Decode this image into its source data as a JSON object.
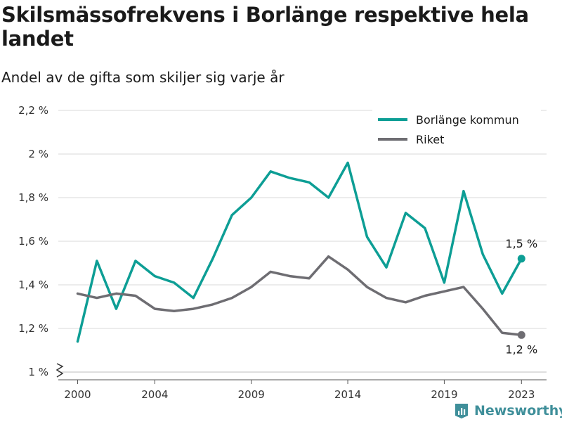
{
  "title": "Skilsmässofrekvens i Borlänge respektive hela landet",
  "subtitle": "Andel av de gifta som skiljer sig varje år",
  "brand": "Newsworthy",
  "colors": {
    "borlange": "#0d9e95",
    "riket": "#6e6d72",
    "grid": "#d9d9d9",
    "axis": "#555555",
    "brand": "#3f8f9a"
  },
  "legend_placement": "top-right",
  "chart_data": {
    "type": "line",
    "title": "Skilsmässofrekvens i Borlänge respektive hela landet",
    "subtitle": "Andel av de gifta som skiljer sig varje år",
    "x": [
      2000,
      2001,
      2002,
      2003,
      2004,
      2005,
      2006,
      2007,
      2008,
      2009,
      2010,
      2011,
      2012,
      2013,
      2014,
      2015,
      2016,
      2017,
      2018,
      2019,
      2020,
      2021,
      2022,
      2023
    ],
    "series": [
      {
        "name": "Borlänge kommun",
        "color": "#0d9e95",
        "values": [
          1.14,
          1.51,
          1.29,
          1.51,
          1.44,
          1.41,
          1.34,
          1.52,
          1.72,
          1.8,
          1.92,
          1.89,
          1.87,
          1.8,
          1.96,
          1.62,
          1.48,
          1.73,
          1.66,
          1.41,
          1.83,
          1.54,
          1.36,
          1.52
        ]
      },
      {
        "name": "Riket",
        "color": "#6e6d72",
        "values": [
          1.36,
          1.34,
          1.36,
          1.35,
          1.29,
          1.28,
          1.29,
          1.31,
          1.34,
          1.39,
          1.46,
          1.44,
          1.43,
          1.53,
          1.47,
          1.39,
          1.34,
          1.32,
          1.35,
          1.37,
          1.39,
          1.29,
          1.18,
          1.17
        ]
      }
    ],
    "end_labels": [
      {
        "series": "Borlänge kommun",
        "text": "1,5 %"
      },
      {
        "series": "Riket",
        "text": "1,2 %"
      }
    ],
    "x_ticks": [
      2000,
      2004,
      2009,
      2014,
      2019,
      2023
    ],
    "x_tick_labels": [
      "2000",
      "2004",
      "2009",
      "2014",
      "2019",
      "2023"
    ],
    "y_ticks": [
      1.0,
      1.2,
      1.4,
      1.6,
      1.8,
      2.0,
      2.2
    ],
    "y_tick_labels": [
      "1 %",
      "1,2 %",
      "1,4 %",
      "1,6 %",
      "1,8 %",
      "2 %",
      "2,2 %"
    ],
    "xlim": [
      1999.0,
      2024.3
    ],
    "ylim": [
      1.0,
      2.2
    ],
    "y_axis_break": true,
    "grid": "horizontal",
    "xlabel": "",
    "ylabel": ""
  }
}
